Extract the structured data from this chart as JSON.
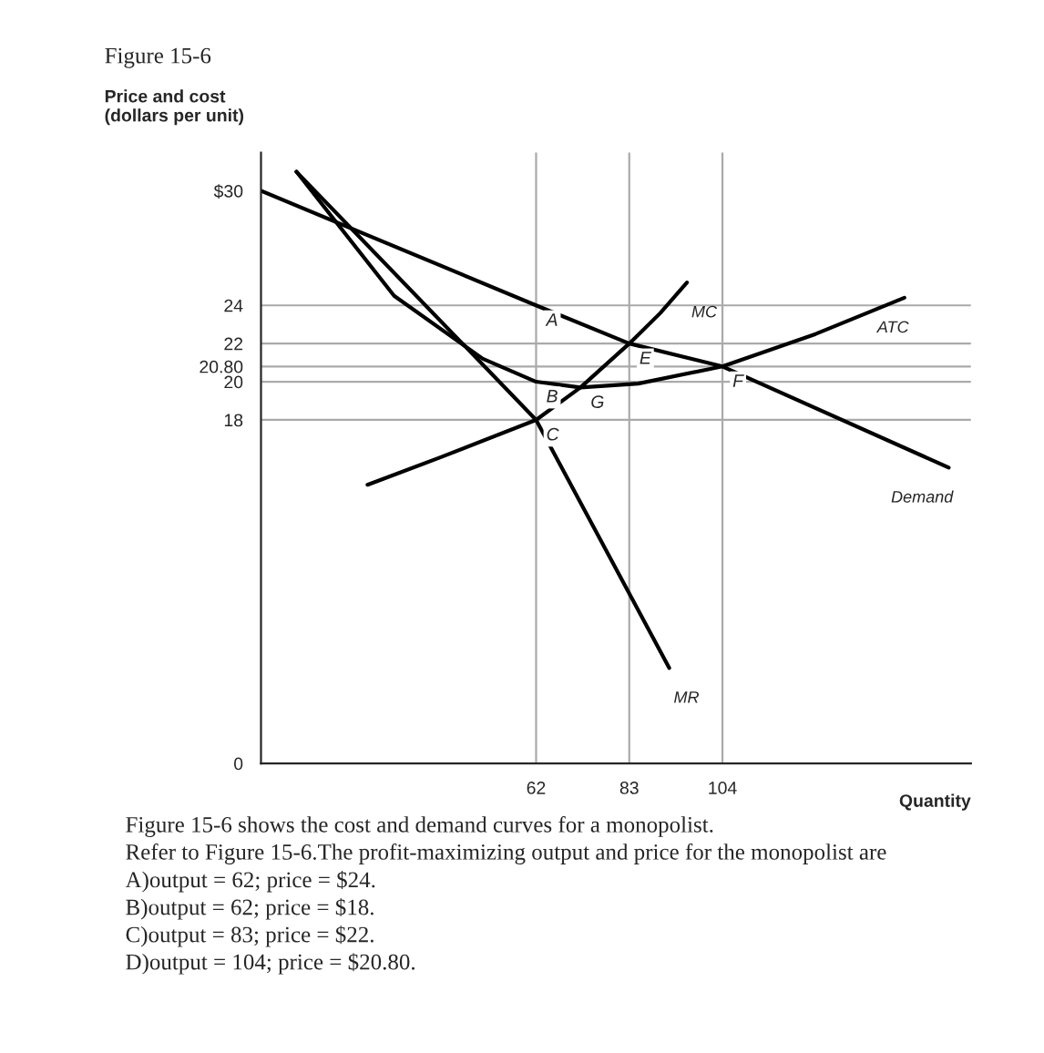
{
  "chart_data": {
    "type": "line",
    "title": "Figure 15-6",
    "ylabel": "Price and cost\n(dollars per unit)",
    "xlabel": "Quantity",
    "series": [
      {
        "name": "Demand",
        "color": "#000000",
        "x": [
          0,
          62,
          83,
          104,
          155
        ],
        "values": [
          30,
          24,
          22,
          20.8,
          15.5
        ]
      },
      {
        "name": "MR",
        "color": "#000000",
        "x": [
          8,
          62,
          92
        ],
        "values": [
          31,
          18,
          5
        ]
      },
      {
        "name": "MC",
        "color": "#000000",
        "x": [
          24,
          40,
          62,
          72,
          83,
          90,
          96
        ],
        "values": [
          14.6,
          16,
          18,
          19.7,
          22,
          23.6,
          25.2
        ]
      },
      {
        "name": "ATC",
        "color": "#000000",
        "x": [
          8,
          30,
          50,
          62,
          72,
          85,
          104,
          125,
          145
        ],
        "values": [
          31,
          24.5,
          21.2,
          20,
          19.7,
          19.9,
          20.8,
          22.5,
          24.4
        ]
      }
    ],
    "xlim": [
      0,
      160
    ],
    "ylim": [
      0,
      32
    ],
    "xticks": [
      62,
      83,
      104
    ],
    "yticks": [
      0,
      18,
      20,
      {
        "value": 20.8,
        "label": "20.80"
      },
      22,
      24,
      {
        "value": 30,
        "label": "$30"
      }
    ],
    "ref_lines": [
      {
        "axis": "y",
        "value": 24,
        "color": "#aaaaaa"
      },
      {
        "axis": "y",
        "value": 22,
        "color": "#aaaaaa"
      },
      {
        "axis": "y",
        "value": 20.8,
        "color": "#aaaaaa"
      },
      {
        "axis": "y",
        "value": 20,
        "color": "#aaaaaa"
      },
      {
        "axis": "y",
        "value": 18,
        "color": "#aaaaaa"
      },
      {
        "axis": "x",
        "value": 62,
        "color": "#aaaaaa"
      },
      {
        "axis": "x",
        "value": 83,
        "color": "#aaaaaa"
      },
      {
        "axis": "x",
        "value": 104,
        "color": "#aaaaaa"
      }
    ],
    "annotations": [
      {
        "text": "A",
        "x": 62,
        "y": 24
      },
      {
        "text": "B",
        "x": 62,
        "y": 20
      },
      {
        "text": "C",
        "x": 62,
        "y": 18
      },
      {
        "text": "E",
        "x": 83,
        "y": 22
      },
      {
        "text": "F",
        "x": 104,
        "y": 20.8
      },
      {
        "text": "G",
        "x": 72,
        "y": 19.7
      },
      "Figure 15-6 shows the cost and demand curves for a monopolist.",
      "Refer to Figure 15-6.The profit-maximizing output and price for the monopolist are",
      "A)output = 62; price = $24.",
      "B)output = 62; price = $18.",
      "C)output = 83; price = $22.",
      "D)output = 104; price = $20.80."
    ],
    "grid": false,
    "legend": false,
    "marker": "none",
    "line_style": "solid"
  }
}
